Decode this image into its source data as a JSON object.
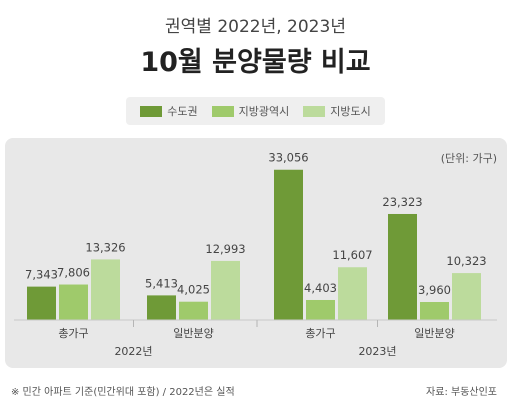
{
  "header": {
    "subtitle": "권역별 2022년, 2023년",
    "title": "10월 분양물량 비교"
  },
  "unit_label": "(단위: 가구)",
  "footnote": "※ 민간 아파트 기준(민간위대 포함) / 2022년은 실적",
  "source": "자료: 부동산인포",
  "colors": {
    "capital": "#6f9a37",
    "metro": "#9fca6b",
    "province": "#bcdb9c",
    "panel": "#e8e8e8"
  },
  "chart_data": {
    "type": "bar",
    "title": "10월 분양물량 비교",
    "subtitle": "권역별 2022년, 2023년",
    "series_names": [
      "수도권",
      "지방광역시",
      "지방도시"
    ],
    "groups": [
      {
        "year": "2022년",
        "categories": [
          {
            "label": "총가구",
            "values": [
              7343,
              7806,
              13326
            ],
            "value_labels": [
              "7,343",
              "7,806",
              "13,326"
            ]
          },
          {
            "label": "일반분양",
            "values": [
              5413,
              4025,
              12993
            ],
            "value_labels": [
              "5,413",
              "4,025",
              "12,993"
            ]
          }
        ]
      },
      {
        "year": "2023년",
        "categories": [
          {
            "label": "총가구",
            "values": [
              33056,
              4403,
              11607
            ],
            "value_labels": [
              "33,056",
              "4,403",
              "11,607"
            ]
          },
          {
            "label": "일반분양",
            "values": [
              23323,
              3960,
              10323
            ],
            "value_labels": [
              "23,323",
              "3,960",
              "10,323"
            ]
          }
        ]
      }
    ],
    "ylim": [
      0,
      35000
    ],
    "grid": false,
    "legend_position": "top"
  }
}
